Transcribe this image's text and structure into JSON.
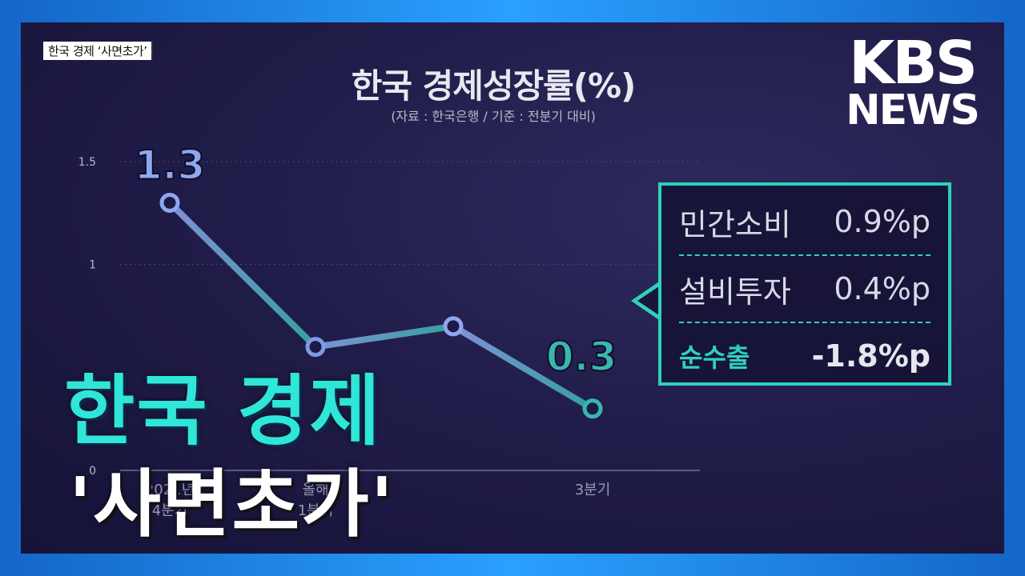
{
  "corner_tag": "한국 경제 ‘사면초가’",
  "logo": {
    "line1": "KBS",
    "line2": "NEWS"
  },
  "headline": {
    "line1": "한국 경제",
    "line2": "'사면초가'"
  },
  "colors": {
    "accent": "#2fd1ba",
    "headline": "#2fe6d8",
    "line_start": "#8fa6f0",
    "line_end": "#3ab7ad"
  },
  "chart_data": {
    "type": "line",
    "title": "한국 경제성장률(%)",
    "subtitle": "(자료 : 한국은행 / 기준 : 전분기 대비)",
    "y_ticks": [
      "1.5",
      "1",
      "0"
    ],
    "ylim": [
      0,
      1.5
    ],
    "x_labels": [
      "2021년 4분기",
      "올해 1분기",
      "",
      "3분기"
    ],
    "series": [
      {
        "name": "경제성장률",
        "values": [
          1.3,
          0.6,
          0.7,
          0.3
        ]
      }
    ],
    "data_labels": [
      {
        "index": 0,
        "text": "1.3"
      },
      {
        "index": 3,
        "text": "0.3"
      }
    ],
    "breakdown": [
      {
        "label": "민간소비",
        "value": "0.9%p"
      },
      {
        "label": "설비투자",
        "value": "0.4%p"
      },
      {
        "label": "순수출",
        "value": "-1.8%p"
      }
    ]
  }
}
